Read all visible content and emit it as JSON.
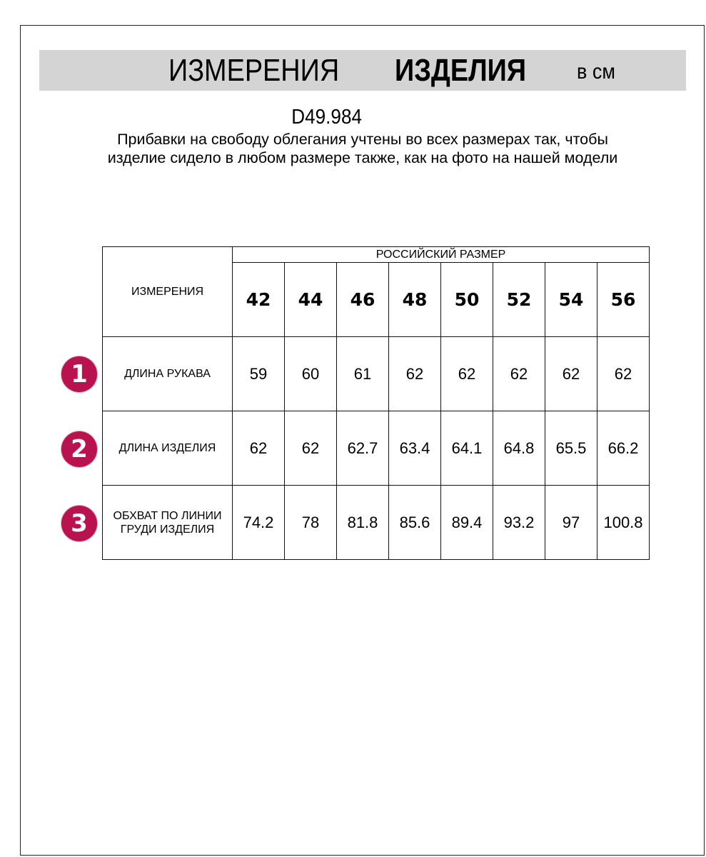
{
  "title": {
    "part1": "ИЗМЕРЕНИЯ",
    "part2": "ИЗДЕЛИЯ",
    "unit": "в см"
  },
  "article": "D49.984",
  "note": "Прибавки на свободу облегания учтены во всех размерах так, чтобы изделие сидело в любом размере также, как на фото на нашей модели",
  "table": {
    "corner": "ИЗМЕРЕНИЯ",
    "group_header": "РОССИЙСКИЙ РАЗМЕР",
    "sizes": [
      "42",
      "44",
      "46",
      "48",
      "50",
      "52",
      "54",
      "56"
    ],
    "rows": [
      {
        "num": "1",
        "label": "ДЛИНА РУКАВА",
        "values": [
          "59",
          "60",
          "61",
          "62",
          "62",
          "62",
          "62",
          "62"
        ]
      },
      {
        "num": "2",
        "label": "ДЛИНА ИЗДЕЛИЯ",
        "values": [
          "62",
          "62",
          "62.7",
          "63.4",
          "64.1",
          "64.8",
          "65.5",
          "66.2"
        ]
      },
      {
        "num": "3",
        "label": "ОБХВАТ ПО ЛИНИИ ГРУДИ ИЗДЕЛИЯ",
        "values": [
          "74.2",
          "78",
          "81.8",
          "85.6",
          "89.4",
          "93.2",
          "97",
          "100.8"
        ]
      }
    ]
  },
  "colors": {
    "accent": "#b8134f",
    "band": "#d4d4d4"
  }
}
